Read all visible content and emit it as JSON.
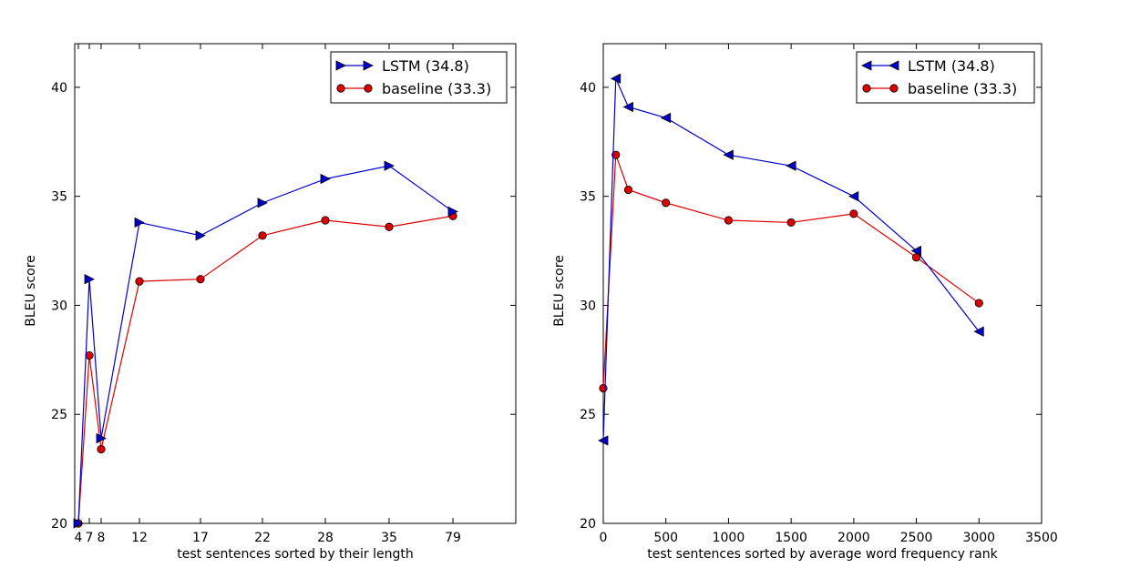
{
  "chart_data": [
    {
      "type": "line",
      "title": "",
      "xlabel": "test sentences sorted by their length",
      "ylabel": "BLEU score",
      "x_scale": "categorical",
      "categories": [
        "4",
        "7",
        "8",
        "12",
        "17",
        "22",
        "28",
        "35",
        "79"
      ],
      "ylim": [
        20,
        42
      ],
      "yticks": [
        "20",
        "25",
        "30",
        "35",
        "40"
      ],
      "grid": false,
      "legend_position": "top-right",
      "series": [
        {
          "name": "LSTM  (34.8)",
          "color": "#0000cc",
          "marker": "triangle-right",
          "values": [
            19.6,
            31.2,
            23.9,
            33.8,
            33.2,
            34.7,
            35.8,
            36.4,
            34.3
          ]
        },
        {
          "name": "baseline (33.3)",
          "color": "#dd0000",
          "marker": "circle",
          "values": [
            19.6,
            27.7,
            23.4,
            31.1,
            31.2,
            33.2,
            33.9,
            33.6,
            34.1
          ]
        }
      ]
    },
    {
      "type": "line",
      "title": "",
      "xlabel": "test sentences sorted by average word frequency rank",
      "ylabel": "BLEU score",
      "x_scale": "linear",
      "xlim": [
        0,
        3500
      ],
      "xticks": [
        "0",
        "500",
        "1000",
        "1500",
        "2000",
        "2500",
        "3000",
        "3500"
      ],
      "ylim": [
        20,
        42
      ],
      "yticks": [
        "20",
        "25",
        "30",
        "35",
        "40"
      ],
      "grid": false,
      "legend_position": "top-right",
      "series": [
        {
          "name": "LSTM  (34.8)",
          "color": "#0000cc",
          "marker": "triangle-left",
          "x": [
            0,
            100,
            200,
            500,
            1000,
            1500,
            2000,
            2500,
            3000
          ],
          "values": [
            23.8,
            40.4,
            39.1,
            38.6,
            36.9,
            36.4,
            35.0,
            32.5,
            28.8
          ]
        },
        {
          "name": "baseline (33.3)",
          "color": "#dd0000",
          "marker": "circle",
          "x": [
            0,
            100,
            200,
            500,
            1000,
            1500,
            2000,
            2500,
            3000
          ],
          "values": [
            26.2,
            36.9,
            35.3,
            34.7,
            33.9,
            33.8,
            34.2,
            32.2,
            30.1
          ]
        }
      ]
    }
  ]
}
